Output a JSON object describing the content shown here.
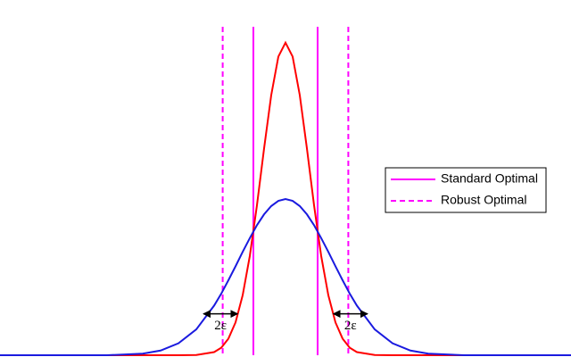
{
  "chart_data": {
    "type": "line",
    "xlim": [
      -4,
      4
    ],
    "ylim": [
      0,
      1.35
    ],
    "x": [
      -4,
      -3,
      -2.5,
      -2,
      -1.75,
      -1.5,
      -1.25,
      -1,
      -0.9,
      -0.8,
      -0.7,
      -0.6,
      -0.5,
      -0.4,
      -0.3,
      -0.2,
      -0.1,
      0,
      0.1,
      0.2,
      0.3,
      0.4,
      0.5,
      0.6,
      0.7,
      0.8,
      0.9,
      1,
      1.25,
      1.5,
      1.75,
      2,
      2.5,
      3,
      4
    ],
    "series": [
      {
        "color": "#ff0000",
        "values": [
          0,
          0,
          0,
          0,
          0,
          0,
          0.001,
          0.012,
          0.029,
          0.064,
          0.127,
          0.232,
          0.384,
          0.58,
          0.8,
          1.006,
          1.155,
          1.209,
          1.155,
          1.006,
          0.8,
          0.58,
          0.384,
          0.232,
          0.127,
          0.064,
          0.029,
          0.012,
          0.001,
          0,
          0,
          0,
          0,
          0,
          0
        ]
      },
      {
        "color": "#1a1adf",
        "values": [
          0,
          0,
          0,
          0.006,
          0.018,
          0.046,
          0.1,
          0.192,
          0.238,
          0.29,
          0.344,
          0.4,
          0.453,
          0.503,
          0.545,
          0.577,
          0.597,
          0.604,
          0.597,
          0.577,
          0.545,
          0.503,
          0.453,
          0.4,
          0.344,
          0.29,
          0.238,
          0.192,
          0.1,
          0.046,
          0.018,
          0.006,
          0,
          0,
          0
        ]
      }
    ],
    "vlines": [
      {
        "name": "Standard Optimal",
        "color": "#ff00ff",
        "dashed": false,
        "x": [
          -0.45,
          0.45
        ]
      },
      {
        "name": "Robust Optimal",
        "color": "#ff00ff",
        "dashed": true,
        "x": [
          -0.88,
          0.88
        ]
      }
    ],
    "annotations": [
      {
        "text": "2ε",
        "x": [
          -1.15,
          -0.67
        ],
        "y": 0.16
      },
      {
        "text": "2ε",
        "x": [
          0.67,
          1.15
        ],
        "y": 0.16
      }
    ]
  }
}
